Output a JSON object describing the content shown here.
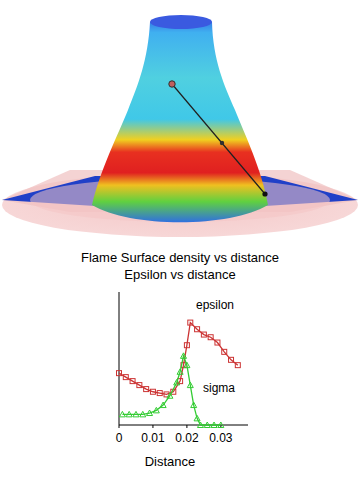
{
  "chart_data": {
    "type": "line",
    "title": "Flame Surface density vs distance",
    "subtitle": "Epsilon vs distance",
    "x_label": "Distance",
    "xlim": [
      0,
      0.038
    ],
    "xticks": [
      0,
      0.01,
      0.02,
      0.03
    ],
    "ylim": [
      0,
      1
    ],
    "tick_labels": "x",
    "grid": false,
    "series": [
      {
        "name": "epsilon",
        "color": "#cc3333",
        "marker": "square",
        "line_style": "solid",
        "x": [
          0,
          0.002,
          0.004,
          0.006,
          0.008,
          0.01,
          0.012,
          0.014,
          0.016,
          0.018,
          0.019,
          0.02,
          0.021,
          0.023,
          0.025,
          0.027,
          0.029,
          0.031,
          0.033,
          0.035
        ],
        "values": [
          0.39,
          0.36,
          0.33,
          0.3,
          0.27,
          0.25,
          0.24,
          0.23,
          0.25,
          0.33,
          0.45,
          0.6,
          0.77,
          0.72,
          0.68,
          0.66,
          0.62,
          0.55,
          0.49,
          0.45
        ]
      },
      {
        "name": "sigma",
        "color": "#33cc33",
        "marker": "triangle",
        "line_style": "solid",
        "x": [
          0.001,
          0.003,
          0.005,
          0.007,
          0.009,
          0.011,
          0.013,
          0.015,
          0.017,
          0.018,
          0.019,
          0.02,
          0.021,
          0.022,
          0.023,
          0.024,
          0.026,
          0.028,
          0.03
        ],
        "values": [
          0.08,
          0.08,
          0.08,
          0.08,
          0.09,
          0.11,
          0.15,
          0.22,
          0.32,
          0.4,
          0.52,
          0.45,
          0.3,
          0.15,
          0.05,
          0,
          0,
          0,
          0
        ]
      }
    ]
  }
}
